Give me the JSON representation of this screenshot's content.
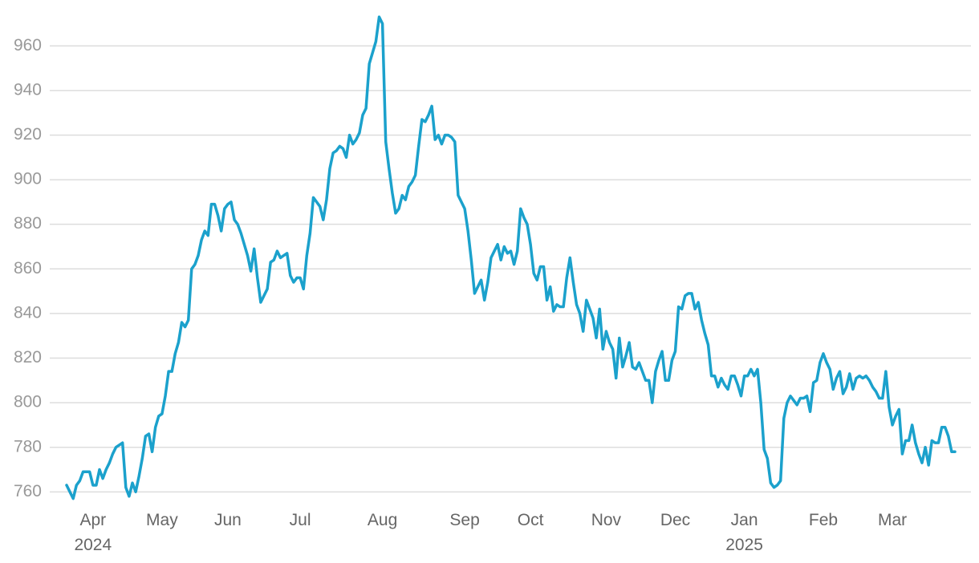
{
  "chart_data": {
    "type": "line",
    "categories": [
      null,
      null,
      null,
      null,
      null,
      null,
      null,
      null,
      "Apr 2024",
      null,
      null,
      null,
      null,
      null,
      null,
      null,
      null,
      null,
      null,
      null,
      null,
      null,
      null,
      null,
      null,
      null,
      null,
      null,
      null,
      "May",
      null,
      null,
      null,
      null,
      null,
      null,
      null,
      null,
      null,
      null,
      null,
      null,
      null,
      null,
      null,
      null,
      null,
      null,
      null,
      "Jun",
      null,
      null,
      null,
      null,
      null,
      null,
      null,
      null,
      null,
      null,
      null,
      null,
      null,
      null,
      null,
      null,
      null,
      null,
      null,
      null,
      null,
      "Jul",
      null,
      null,
      null,
      null,
      null,
      null,
      null,
      null,
      null,
      null,
      null,
      null,
      null,
      null,
      null,
      null,
      null,
      null,
      null,
      null,
      null,
      null,
      null,
      null,
      "Aug",
      null,
      null,
      null,
      null,
      null,
      null,
      null,
      null,
      null,
      null,
      null,
      null,
      null,
      null,
      null,
      null,
      null,
      null,
      null,
      null,
      null,
      null,
      null,
      null,
      "Sep",
      null,
      null,
      null,
      null,
      null,
      null,
      null,
      null,
      null,
      null,
      null,
      null,
      null,
      null,
      null,
      null,
      null,
      null,
      null,
      "Oct",
      null,
      null,
      null,
      null,
      null,
      null,
      null,
      null,
      null,
      null,
      null,
      null,
      null,
      null,
      null,
      null,
      null,
      null,
      null,
      null,
      null,
      null,
      "Nov",
      null,
      null,
      null,
      null,
      null,
      null,
      null,
      null,
      null,
      null,
      null,
      null,
      null,
      null,
      null,
      null,
      null,
      null,
      null,
      null,
      "Dec",
      null,
      null,
      null,
      null,
      null,
      null,
      null,
      null,
      null,
      null,
      null,
      null,
      null,
      null,
      null,
      null,
      null,
      null,
      null,
      null,
      "Jan 2025",
      null,
      null,
      null,
      null,
      null,
      null,
      null,
      null,
      null,
      null,
      null,
      null,
      null,
      null,
      null,
      null,
      null,
      null,
      null,
      null,
      null,
      null,
      null,
      "Feb",
      null,
      null,
      null,
      null,
      null,
      null,
      null,
      null,
      null,
      null,
      null,
      null,
      null,
      null,
      null,
      null,
      null,
      null,
      null,
      null,
      "Mar",
      null,
      null,
      null,
      null,
      null,
      null,
      null,
      null,
      null,
      null,
      null,
      null,
      null,
      null,
      null,
      null,
      null,
      null,
      null
    ],
    "series": [
      {
        "color": "#1ba1cc",
        "values": [
          763,
          760,
          757,
          763,
          765,
          769,
          769,
          769,
          763,
          763,
          770,
          766,
          770,
          773,
          777,
          780,
          781,
          782,
          762,
          758,
          764,
          760,
          767,
          775,
          785,
          786,
          778,
          789,
          794,
          795,
          803,
          814,
          814,
          822,
          827,
          836,
          834,
          837,
          860,
          862,
          866,
          873,
          877,
          875,
          889,
          889,
          884,
          877,
          887,
          889,
          890,
          882,
          880,
          876,
          871,
          866,
          859,
          869,
          856,
          845,
          848,
          851,
          863,
          864,
          868,
          865,
          866,
          867,
          857,
          854,
          856,
          856,
          851,
          866,
          876,
          892,
          890,
          888,
          882,
          891,
          905,
          912,
          913,
          915,
          914,
          910,
          920,
          916,
          918,
          921,
          929,
          932,
          952,
          957,
          962,
          973,
          970,
          917,
          905,
          894,
          885,
          887,
          893,
          891,
          897,
          899,
          902,
          915,
          927,
          926,
          929,
          933,
          918,
          920,
          916,
          920,
          920,
          919,
          917,
          893,
          890,
          887,
          877,
          864,
          849,
          852,
          855,
          846,
          854,
          865,
          868,
          871,
          864,
          870,
          867,
          868,
          862,
          868,
          887,
          883,
          880,
          871,
          858,
          855,
          861,
          861,
          846,
          852,
          841,
          844,
          843,
          843,
          856,
          865,
          854,
          844,
          840,
          832,
          846,
          842,
          838,
          829,
          842,
          824,
          832,
          827,
          824,
          811,
          829,
          816,
          821,
          827,
          816,
          815,
          818,
          814,
          810,
          810,
          800,
          814,
          819,
          823,
          810,
          810,
          819,
          823,
          843,
          842,
          848,
          849,
          849,
          842,
          845,
          837,
          831,
          826,
          812,
          812,
          807,
          811,
          808,
          806,
          812,
          812,
          808,
          803,
          812,
          812,
          815,
          812,
          815,
          800,
          779,
          775,
          764,
          762,
          763,
          765,
          793,
          800,
          803,
          801,
          799,
          802,
          802,
          803,
          796,
          809,
          810,
          818,
          822,
          818,
          815,
          806,
          811,
          814,
          804,
          807,
          813,
          806,
          811,
          812,
          811,
          812,
          810,
          807,
          805,
          802,
          802,
          814,
          798,
          790,
          794,
          797,
          777,
          783,
          783,
          790,
          782,
          777,
          773,
          780,
          772,
          783,
          782,
          782,
          789,
          789,
          785,
          778,
          778
        ]
      }
    ],
    "ylim": [
      754,
      977
    ],
    "yticks": [
      760,
      780,
      800,
      820,
      840,
      860,
      880,
      900,
      920,
      940,
      960
    ],
    "grid": true
  }
}
